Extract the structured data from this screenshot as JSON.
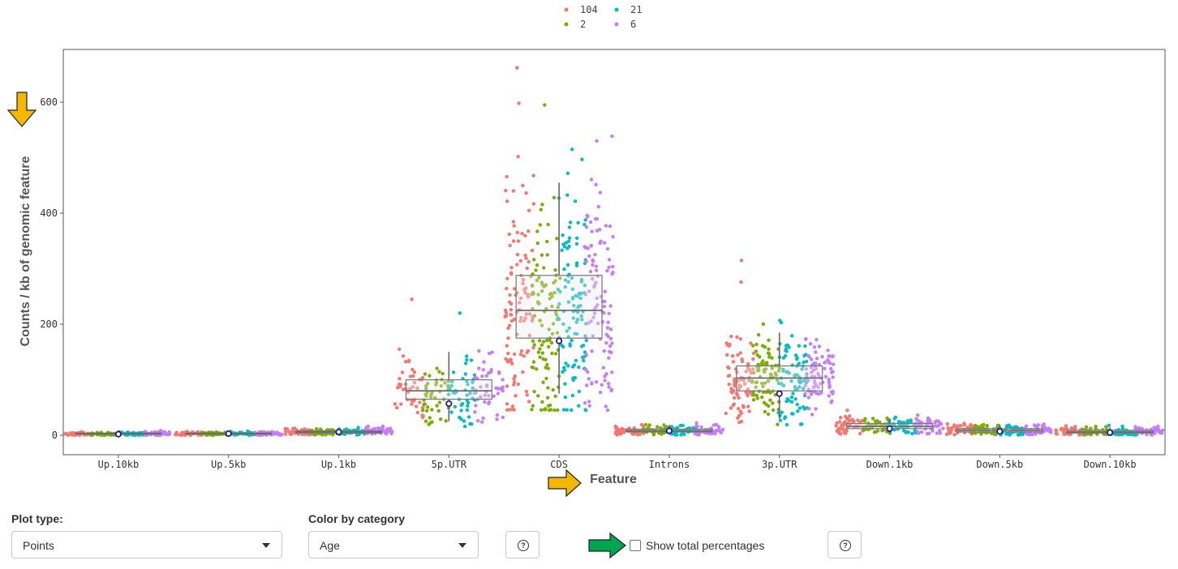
{
  "chart_data": {
    "type": "scatter",
    "subtype": "jittered strip plot with box plots",
    "xlabel": "Feature",
    "ylabel": "Counts / kb of genomic feature",
    "ylim": [
      -35,
      695
    ],
    "yticks": [
      0,
      200,
      400,
      600
    ],
    "categories": [
      "Up.10kb",
      "Up.5kb",
      "Up.1kb",
      "5p.UTR",
      "CDS",
      "Introns",
      "3p.UTR",
      "Down.1kb",
      "Down.5kb",
      "Down.10kb"
    ],
    "legend_position": "top",
    "legend": [
      {
        "name": "104",
        "color": "#F8766D"
      },
      {
        "name": "21",
        "color": "#00BFC4"
      },
      {
        "name": "2",
        "color": "#7CAE00"
      },
      {
        "name": "6",
        "color": "#C77CFF"
      }
    ],
    "series": [
      {
        "name": "104",
        "color": "#F8766D",
        "medians": [
          2,
          3,
          6,
          85,
          235,
          8,
          105,
          18,
          10,
          7
        ]
      },
      {
        "name": "2",
        "color": "#7CAE00",
        "medians": [
          2,
          3,
          5,
          70,
          200,
          9,
          100,
          17,
          9,
          6
        ]
      },
      {
        "name": "21",
        "color": "#00BFC4",
        "medians": [
          2,
          3,
          5,
          75,
          235,
          8,
          100,
          15,
          8,
          5
        ]
      },
      {
        "name": "6",
        "color": "#C77CFF",
        "medians": [
          3,
          3,
          7,
          80,
          240,
          9,
          105,
          18,
          10,
          7
        ]
      }
    ],
    "boxplots": [
      {
        "category": "Up.10kb",
        "q1": 2,
        "median": 3,
        "q3": 4,
        "whisker_low": 0,
        "whisker_high": 6
      },
      {
        "category": "Up.5kb",
        "q1": 2,
        "median": 3,
        "q3": 4,
        "whisker_low": 0,
        "whisker_high": 6
      },
      {
        "category": "Up.1kb",
        "q1": 4,
        "median": 6,
        "q3": 8,
        "whisker_low": 1,
        "whisker_high": 12
      },
      {
        "category": "5p.UTR",
        "q1": 65,
        "median": 80,
        "q3": 100,
        "whisker_low": 25,
        "whisker_high": 150
      },
      {
        "category": "CDS",
        "q1": 175,
        "median": 225,
        "q3": 288,
        "whisker_low": 75,
        "whisker_high": 455
      },
      {
        "category": "Introns",
        "q1": 6,
        "median": 8,
        "q3": 11,
        "whisker_low": 1,
        "whisker_high": 18
      },
      {
        "category": "3p.UTR",
        "q1": 80,
        "median": 103,
        "q3": 125,
        "whisker_low": 30,
        "whisker_high": 185
      },
      {
        "category": "Down.1kb",
        "q1": 12,
        "median": 16,
        "q3": 21,
        "whisker_low": 4,
        "whisker_high": 30
      },
      {
        "category": "Down.5kb",
        "q1": 6,
        "median": 9,
        "q3": 12,
        "whisker_low": 1,
        "whisker_high": 18
      },
      {
        "category": "Down.10kb",
        "q1": 4,
        "median": 6,
        "q3": 9,
        "whisker_low": 1,
        "whisker_high": 14
      }
    ],
    "means": [
      {
        "category": "Up.10kb",
        "value": 2
      },
      {
        "category": "Up.5kb",
        "value": 3
      },
      {
        "category": "Up.1kb",
        "value": 6
      },
      {
        "category": "5p.UTR",
        "value": 57
      },
      {
        "category": "CDS",
        "value": 170
      },
      {
        "category": "Introns",
        "value": 8
      },
      {
        "category": "3p.UTR",
        "value": 75
      },
      {
        "category": "Down.1kb",
        "value": 12
      },
      {
        "category": "Down.5kb",
        "value": 7
      },
      {
        "category": "Down.10kb",
        "value": 5
      }
    ],
    "outliers": [
      {
        "category": "CDS",
        "series": "104",
        "value": 662
      },
      {
        "category": "CDS",
        "series": "104",
        "value": 598
      },
      {
        "category": "CDS",
        "series": "2",
        "value": 595
      },
      {
        "category": "CDS",
        "series": "104",
        "value": 502
      },
      {
        "category": "CDS",
        "series": "6",
        "value": 530
      },
      {
        "category": "CDS",
        "series": "21",
        "value": 515
      },
      {
        "category": "5p.UTR",
        "series": "104",
        "value": 245
      },
      {
        "category": "5p.UTR",
        "series": "21",
        "value": 220
      },
      {
        "category": "3p.UTR",
        "series": "104",
        "value": 315
      },
      {
        "category": "3p.UTR",
        "series": "104",
        "value": 276
      },
      {
        "category": "Down.1kb",
        "series": "104",
        "value": 45
      }
    ]
  },
  "controls": {
    "plot_type": {
      "label": "Plot type:",
      "value": "Points"
    },
    "color_by": {
      "label": "Color by category",
      "value": "Age"
    },
    "help_icon_text": "?",
    "show_total_percentages": {
      "label": "Show total percentages",
      "checked": false
    }
  },
  "annotations": {
    "arrow_color_yellow": "#F5B800",
    "arrow_color_green": "#00A550"
  }
}
